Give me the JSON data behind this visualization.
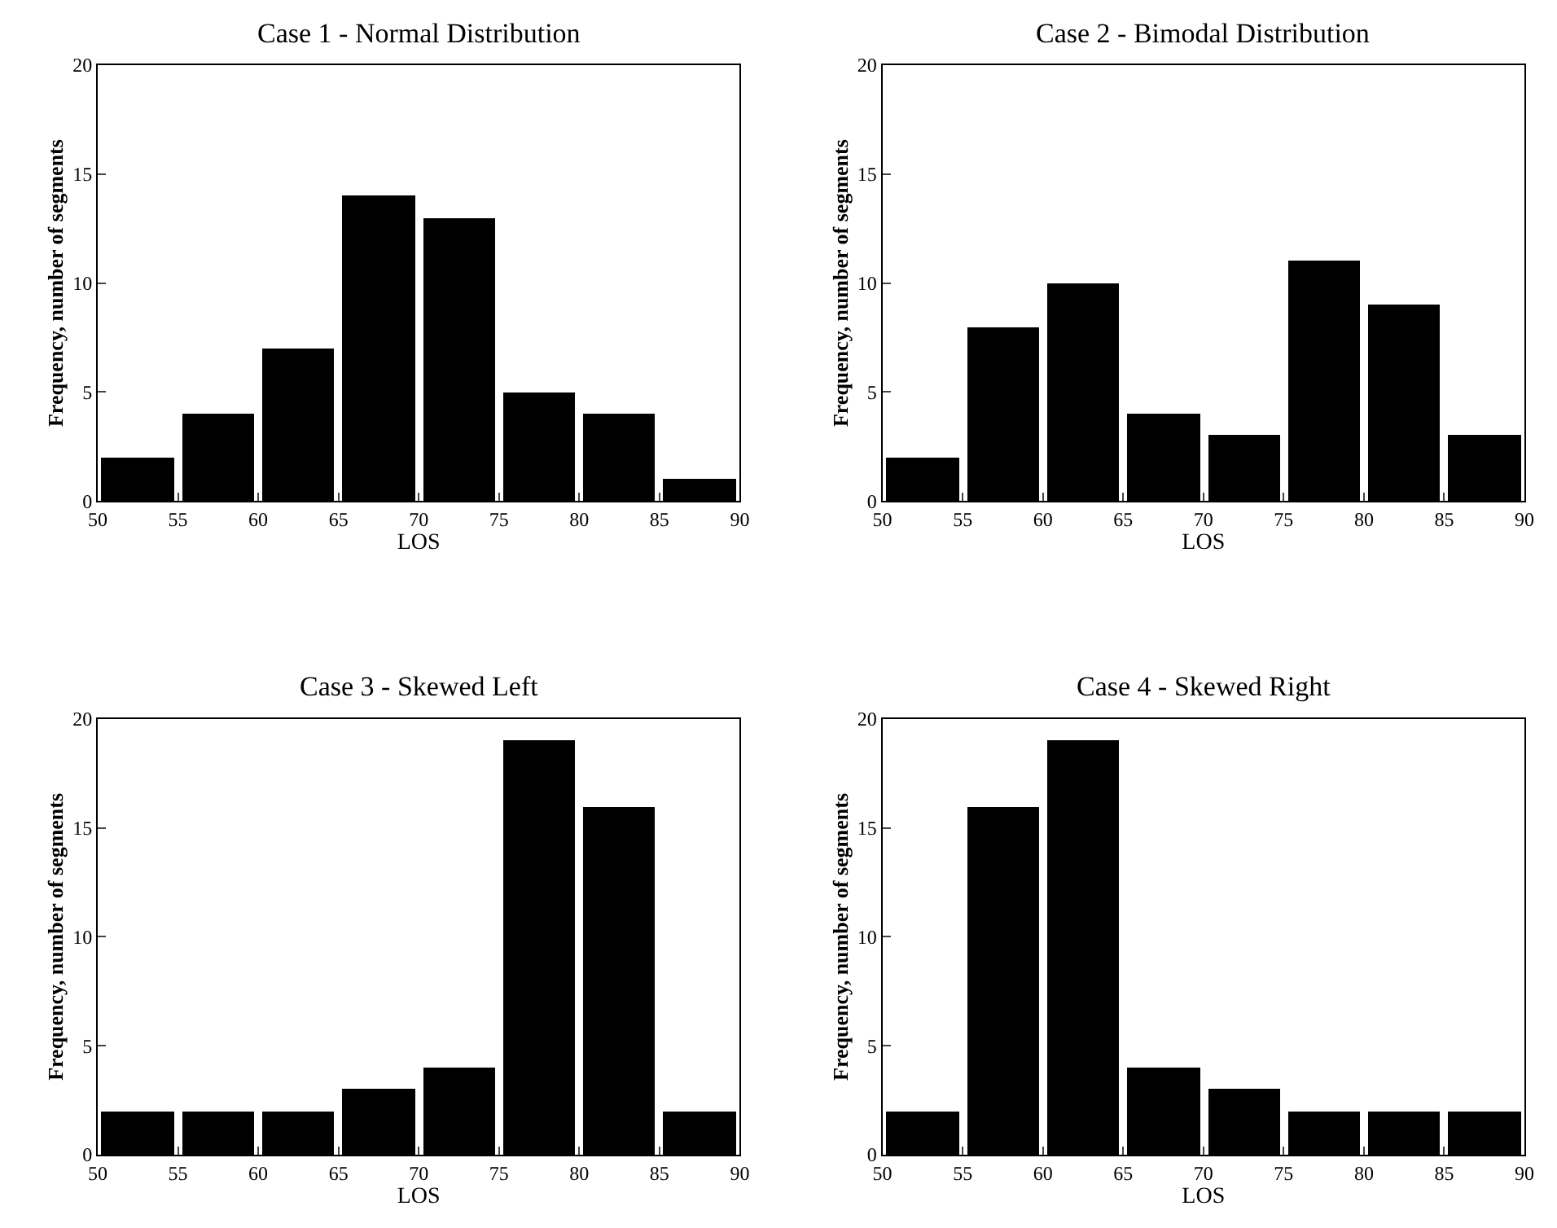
{
  "chart_data": [
    {
      "type": "histogram",
      "title": "Case 1 - Normal Distribution",
      "xlabel": "LOS",
      "ylabel": "Frequency, number of segments",
      "bins": [
        50,
        55,
        60,
        65,
        70,
        75,
        80,
        85,
        90
      ],
      "values": [
        2,
        4,
        7,
        14,
        13,
        5,
        4,
        1
      ],
      "color": "#000000",
      "xlim": [
        50,
        90
      ],
      "ylim": [
        0,
        20
      ],
      "xticks": [
        50,
        55,
        60,
        65,
        70,
        75,
        80,
        85,
        90
      ],
      "yticks": [
        0,
        5,
        10,
        15,
        20
      ]
    },
    {
      "type": "histogram",
      "title": "Case 2 - Bimodal Distribution",
      "xlabel": "LOS",
      "ylabel": "Frequency, number of segments",
      "bins": [
        50,
        55,
        60,
        65,
        70,
        75,
        80,
        85,
        90
      ],
      "values": [
        2,
        8,
        10,
        4,
        3,
        11,
        9,
        3
      ],
      "color": "#000000",
      "xlim": [
        50,
        90
      ],
      "ylim": [
        0,
        20
      ],
      "xticks": [
        50,
        55,
        60,
        65,
        70,
        75,
        80,
        85,
        90
      ],
      "yticks": [
        0,
        5,
        10,
        15,
        20
      ]
    },
    {
      "type": "histogram",
      "title": "Case 3 - Skewed Left",
      "xlabel": "LOS",
      "ylabel": "Frequency, number of segments",
      "bins": [
        50,
        55,
        60,
        65,
        70,
        75,
        80,
        85,
        90
      ],
      "values": [
        2,
        2,
        2,
        3,
        4,
        19,
        16,
        2
      ],
      "color": "#000000",
      "xlim": [
        50,
        90
      ],
      "ylim": [
        0,
        20
      ],
      "xticks": [
        50,
        55,
        60,
        65,
        70,
        75,
        80,
        85,
        90
      ],
      "yticks": [
        0,
        5,
        10,
        15,
        20
      ]
    },
    {
      "type": "histogram",
      "title": "Case 4 - Skewed Right",
      "xlabel": "LOS",
      "ylabel": "Frequency, number of segments",
      "bins": [
        50,
        55,
        60,
        65,
        70,
        75,
        80,
        85,
        90
      ],
      "values": [
        2,
        16,
        19,
        4,
        3,
        2,
        2,
        2
      ],
      "color": "#000000",
      "xlim": [
        50,
        90
      ],
      "ylim": [
        0,
        20
      ],
      "xticks": [
        50,
        55,
        60,
        65,
        70,
        75,
        80,
        85,
        90
      ],
      "yticks": [
        0,
        5,
        10,
        15,
        20
      ]
    }
  ]
}
